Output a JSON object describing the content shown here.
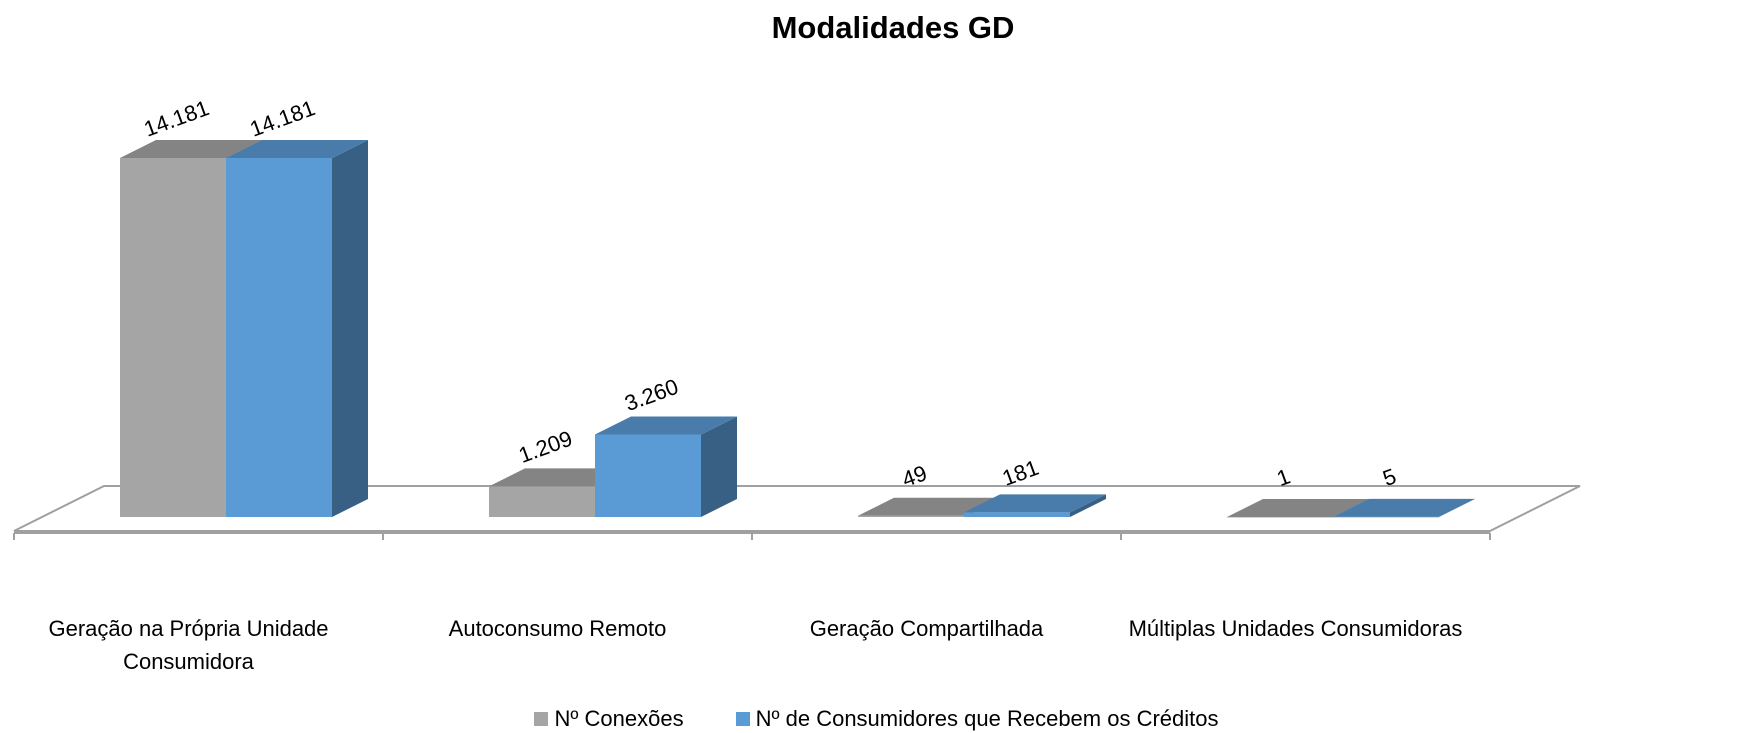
{
  "chart_data": {
    "type": "bar3d",
    "title": "Modalidades  GD",
    "categories": [
      "Geração na Própria Unidade Consumidora",
      "Autoconsumo Remoto",
      "Geração Compartilhada",
      "Múltiplas Unidades Consumidoras"
    ],
    "series": [
      {
        "name": "Nº Conexões",
        "color": "#a5a5a5",
        "values": [
          14181,
          1209,
          49,
          1
        ],
        "value_labels": [
          "14.181",
          "1.209",
          "49",
          "1"
        ]
      },
      {
        "name": "Nº de Consumidores que Recebem os Créditos",
        "color": "#5b9bd5",
        "values": [
          14181,
          3260,
          181,
          5
        ],
        "value_labels": [
          "14.181",
          "3.260",
          "181",
          "5"
        ]
      }
    ],
    "legend": "bottom"
  }
}
